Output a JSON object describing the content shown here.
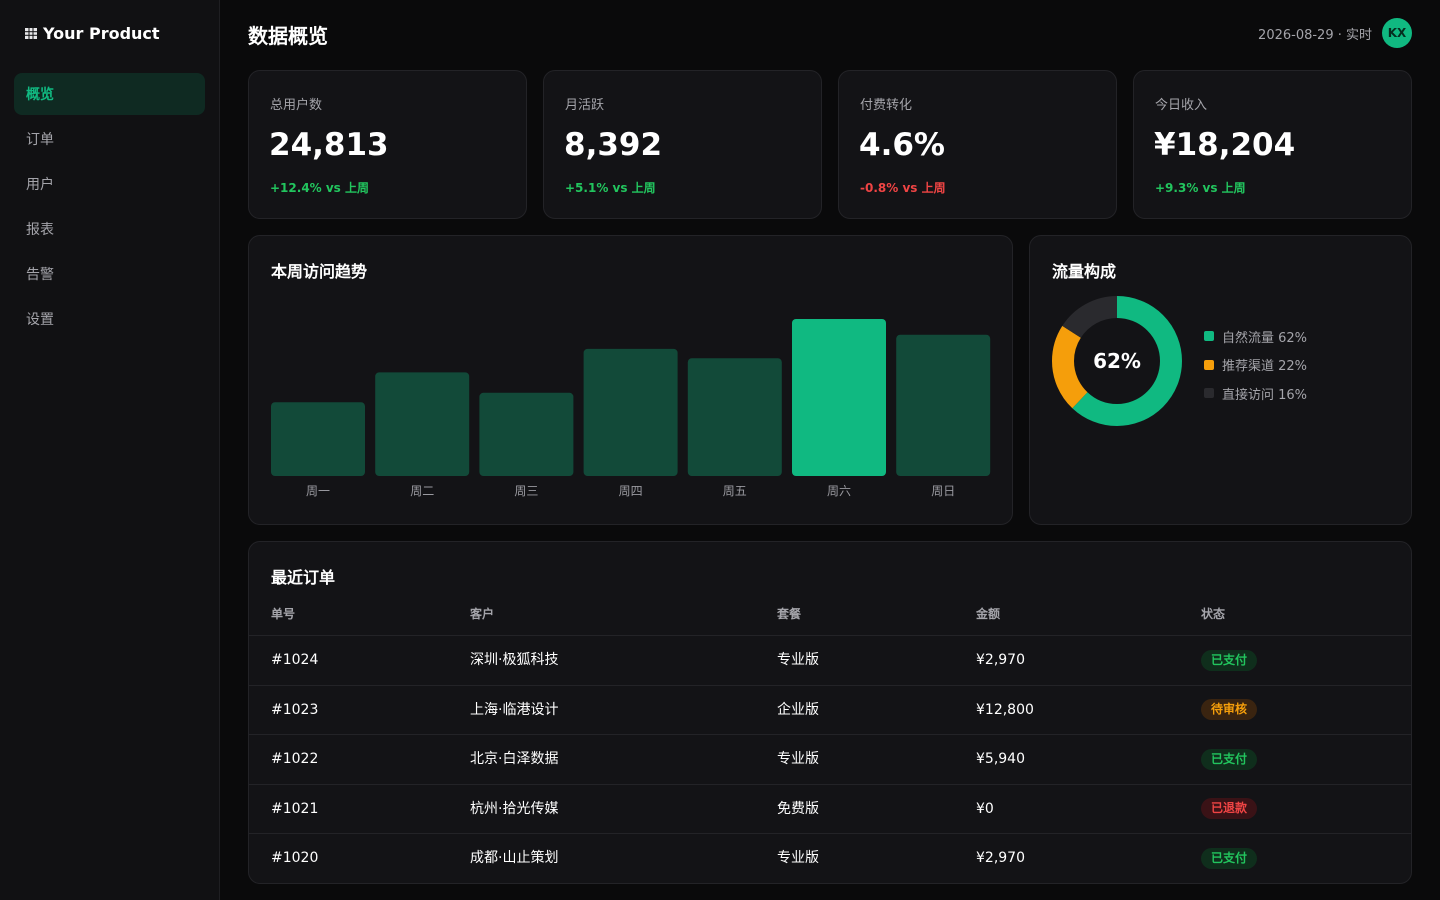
{
  "app": {
    "brand": "Your Product",
    "page_title": "数据概览",
    "header_meta": "2026-08-29 · 实时",
    "avatar_initials": "KX"
  },
  "colors": {
    "accent": "#10b981",
    "bar_default": "#124a39",
    "bar_highlight": "#10b981",
    "donut_orange": "#f59e0b",
    "donut_gray": "#2a2a2e",
    "paid_fg": "#22c55e",
    "paid_bg": "#0f2e1c",
    "pending_fg": "#f59e0b",
    "pending_bg": "#3a2410",
    "refund_fg": "#ef4444",
    "refund_bg": "#3a1216"
  },
  "sidebar": {
    "items": [
      {
        "label": "概览",
        "active": true
      },
      {
        "label": "订单",
        "active": false
      },
      {
        "label": "用户",
        "active": false
      },
      {
        "label": "报表",
        "active": false
      },
      {
        "label": "告警",
        "active": false
      },
      {
        "label": "设置",
        "active": false
      }
    ]
  },
  "stats": [
    {
      "label": "总用户数",
      "value": "24,813",
      "delta": "+12.4% vs 上周",
      "trend": "up"
    },
    {
      "label": "月活跃",
      "value": "8,392",
      "delta": "+5.1% vs 上周",
      "trend": "up"
    },
    {
      "label": "付费转化",
      "value": "4.6%",
      "delta": "-0.8% vs 上周",
      "trend": "down"
    },
    {
      "label": "今日收入",
      "value": "¥18,204",
      "delta": "+9.3% vs 上周",
      "trend": "up"
    }
  ],
  "weekly_chart": {
    "title": "本周访问趋势"
  },
  "traffic": {
    "title": "流量构成",
    "center_label": "62%",
    "legend": [
      {
        "label": "自然流量 62%",
        "color": "#10b981"
      },
      {
        "label": "推荐渠道 22%",
        "color": "#f59e0b"
      },
      {
        "label": "直接访问 16%",
        "color": "#2a2a2e"
      }
    ]
  },
  "chart_data": [
    {
      "type": "bar",
      "title": "本周访问趋势",
      "categories": [
        "周一",
        "周二",
        "周三",
        "周四",
        "周五",
        "周六",
        "周日"
      ],
      "values": [
        47,
        66,
        53,
        81,
        75,
        100,
        90
      ],
      "highlight_index": 5,
      "ylim": [
        0,
        100
      ],
      "grid": false
    },
    {
      "type": "pie",
      "title": "流量构成",
      "categories": [
        "自然流量",
        "推荐渠道",
        "直接访问"
      ],
      "values": [
        62,
        22,
        16
      ],
      "colors": [
        "#10b981",
        "#f59e0b",
        "#2a2a2e"
      ],
      "donut": true,
      "legend": "right"
    }
  ],
  "orders": {
    "title": "最近订单",
    "columns": [
      "单号",
      "客户",
      "套餐",
      "金额",
      "状态"
    ],
    "rows": [
      {
        "id": "#1024",
        "customer": "深圳·极狐科技",
        "plan": "专业版",
        "amount": "¥2,970",
        "status": "已支付",
        "status_type": "paid"
      },
      {
        "id": "#1023",
        "customer": "上海·临港设计",
        "plan": "企业版",
        "amount": "¥12,800",
        "status": "待审核",
        "status_type": "pending"
      },
      {
        "id": "#1022",
        "customer": "北京·白泽数据",
        "plan": "专业版",
        "amount": "¥5,940",
        "status": "已支付",
        "status_type": "paid"
      },
      {
        "id": "#1021",
        "customer": "杭州·拾光传媒",
        "plan": "免费版",
        "amount": "¥0",
        "status": "已退款",
        "status_type": "refund"
      },
      {
        "id": "#1020",
        "customer": "成都·山止策划",
        "plan": "专业版",
        "amount": "¥2,970",
        "status": "已支付",
        "status_type": "paid"
      }
    ]
  }
}
